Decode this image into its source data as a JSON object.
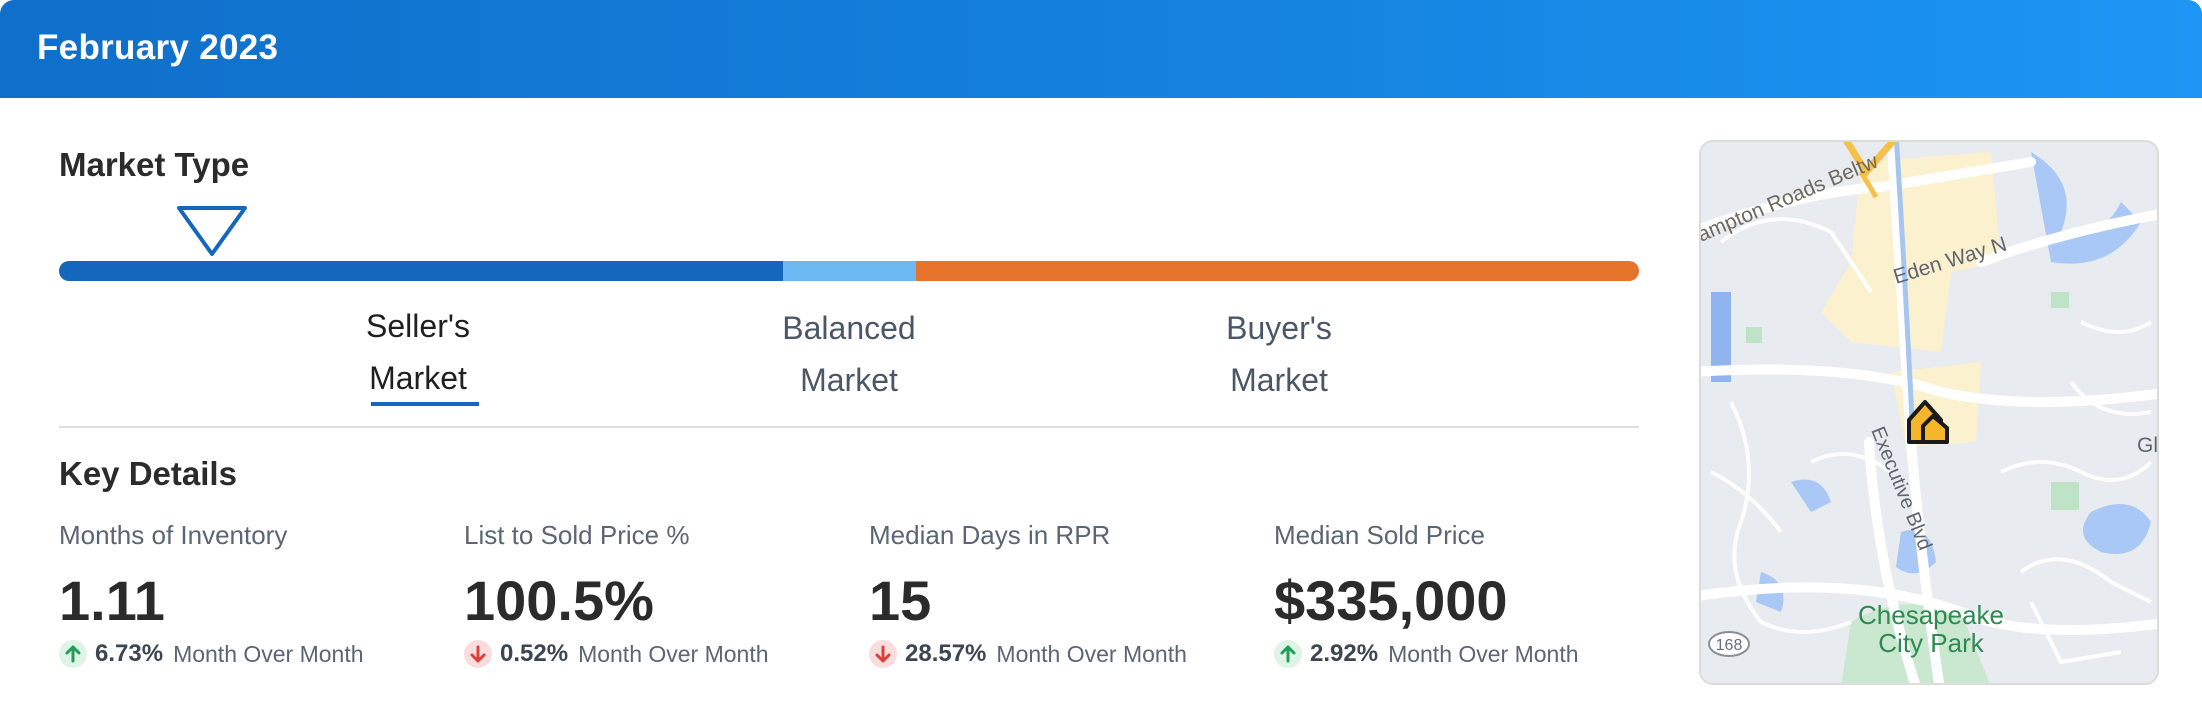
{
  "header": {
    "title": "February 2023"
  },
  "market_type": {
    "title": "Market Type",
    "indicator_position": 0.097,
    "bar_colors": {
      "sellers": "#1467bd",
      "balanced": "#6cb8f2",
      "buyers": "#e5732b"
    },
    "labels": {
      "sellers": {
        "line1": "Seller's",
        "line2": "Market"
      },
      "balanced": {
        "line1": "Balanced",
        "line2": "Market"
      },
      "buyers": {
        "line1": "Buyer's",
        "line2": "Market"
      }
    },
    "selected": "sellers"
  },
  "key_details": {
    "title": "Key Details",
    "items": [
      {
        "label": "Months of Inventory",
        "value": "1.11",
        "change": "6.73%",
        "direction": "up",
        "period": "Month Over Month"
      },
      {
        "label": "List to Sold Price %",
        "value": "100.5%",
        "change": "0.52%",
        "direction": "down",
        "period": "Month Over Month"
      },
      {
        "label": "Median Days in RPR",
        "value": "15",
        "change": "28.57%",
        "direction": "down",
        "period": "Month Over Month"
      },
      {
        "label": "Median Sold Price",
        "value": "$335,000",
        "change": "2.92%",
        "direction": "up",
        "period": "Month Over Month"
      }
    ]
  },
  "map": {
    "labels": {
      "beltway": "ampton Roads Beltw",
      "eden_way": "Eden Way N",
      "executive": "Executive Blvd",
      "park_line1": "Chesapeake",
      "park_line2": "City Park",
      "route_shield": "168",
      "edge": "Gl"
    },
    "icon": "house-marker-icon"
  },
  "colors": {
    "up": "#1e9e5a",
    "down": "#d9413a",
    "accent": "#1467bd"
  }
}
